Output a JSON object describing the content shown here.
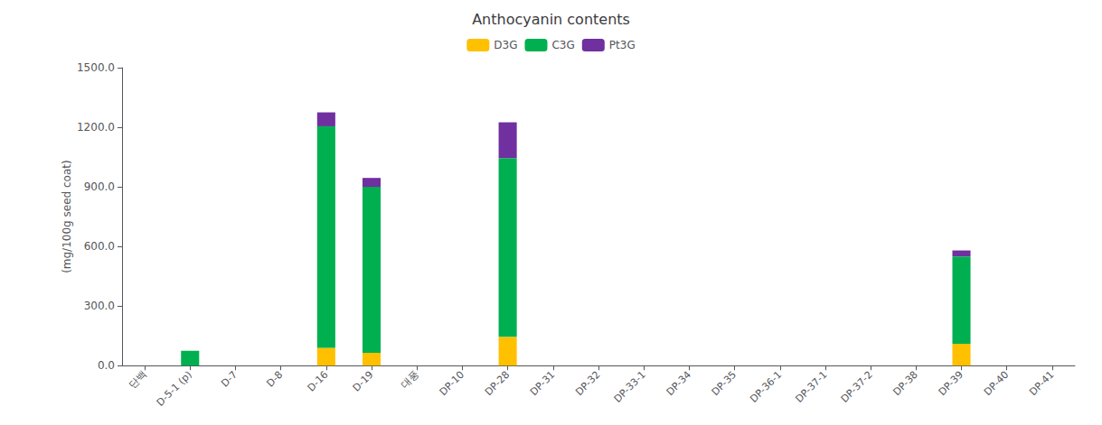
{
  "chart_data": {
    "type": "bar",
    "stacked": true,
    "title": "Anthocyanin contents",
    "ylabel": "(mg/100g seed coat)",
    "categories": [
      "단백",
      "D-5-1 (p)",
      "D-7",
      "D-8",
      "D-16",
      "D-19",
      "대풍",
      "DP-10",
      "DP-28",
      "DP-31",
      "DP-32",
      "DP-33-1",
      "DP-34",
      "DP-35",
      "DP-36-1",
      "DP-37-1",
      "DP-37-2",
      "DP-38",
      "DP-39",
      "DP-40",
      "DP-41"
    ],
    "series": [
      {
        "name": "D3G",
        "color": "#FFC000",
        "values": [
          0,
          0,
          0,
          0,
          90,
          65,
          0,
          0,
          145,
          0,
          0,
          0,
          0,
          0,
          0,
          0,
          0,
          0,
          110,
          0,
          0
        ]
      },
      {
        "name": "C3G",
        "color": "#00B050",
        "values": [
          0,
          75,
          0,
          0,
          1115,
          835,
          0,
          0,
          900,
          0,
          0,
          0,
          0,
          0,
          0,
          0,
          0,
          0,
          440,
          0,
          0
        ]
      },
      {
        "name": "Pt3G",
        "color": "#7030A0",
        "values": [
          0,
          0,
          0,
          0,
          70,
          45,
          0,
          0,
          180,
          0,
          0,
          0,
          0,
          0,
          0,
          0,
          0,
          0,
          30,
          0,
          0
        ]
      }
    ],
    "ylim": [
      0,
      1500
    ],
    "yticks": [
      {
        "value": 0,
        "label": "0.0"
      },
      {
        "value": 300,
        "label": "300.0"
      },
      {
        "value": 600,
        "label": "600.0"
      },
      {
        "value": 900,
        "label": "900.0"
      },
      {
        "value": 1200,
        "label": "1200.0"
      },
      {
        "value": 1500,
        "label": "1500.0"
      }
    ],
    "legend": "upper center",
    "grid": false
  }
}
